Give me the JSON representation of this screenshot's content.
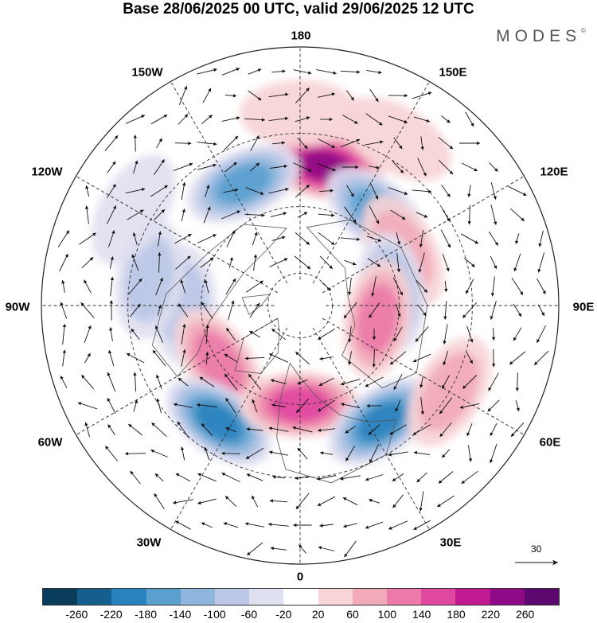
{
  "title": "Base 28/06/2025 00 UTC, valid 29/06/2025 12 UTC",
  "brand": "MODES",
  "brand_mark": "©",
  "longitude_labels": {
    "deg180": "180",
    "w150": "150W",
    "e150": "150E",
    "w120": "120W",
    "e120": "120E",
    "w90": "90W",
    "e90": "90E",
    "w60": "60W",
    "e60": "60E",
    "w30": "30W",
    "e30": "30E",
    "deg0": "0"
  },
  "wind_scale_label": "30",
  "colorbar": {
    "colors": [
      "#0a3d5c",
      "#155f8f",
      "#2a82bd",
      "#5aa0cf",
      "#8fb7dd",
      "#bcc8e6",
      "#dfe0f0",
      "#ffffff",
      "#f7d4d6",
      "#f2aab8",
      "#ec7aa8",
      "#e0489f",
      "#c1198f",
      "#8f0a87",
      "#5b096f"
    ],
    "tick_labels": [
      "-260",
      "-220",
      "-180",
      "-140",
      "-100",
      "-60",
      "-20",
      "20",
      "60",
      "100",
      "140",
      "180",
      "220",
      "260"
    ]
  },
  "anomaly_centers": [
    {
      "lon": 170,
      "lat": 48,
      "value": 230
    },
    {
      "lon": 205,
      "lat": 50,
      "value": -170
    },
    {
      "lon": 140,
      "lat": 54,
      "value": -160
    },
    {
      "lon": 118,
      "lat": 55,
      "value": 60
    },
    {
      "lon": 98,
      "lat": 62,
      "value": -110
    },
    {
      "lon": 80,
      "lat": 66,
      "value": 120
    },
    {
      "lon": 270,
      "lat": 55,
      "value": -90
    },
    {
      "lon": 260,
      "lat": 45,
      "value": -60
    },
    {
      "lon": 305,
      "lat": 60,
      "value": 100
    },
    {
      "lon": 325,
      "lat": 48,
      "value": -200
    },
    {
      "lon": 0,
      "lat": 60,
      "value": 150
    },
    {
      "lon": 35,
      "lat": 48,
      "value": -180
    },
    {
      "lon": 60,
      "lat": 40,
      "value": 60
    },
    {
      "lon": 240,
      "lat": 35,
      "value": -30
    },
    {
      "lon": 150,
      "lat": 35,
      "value": 40
    },
    {
      "lon": 180,
      "lat": 35,
      "value": 40
    }
  ]
}
